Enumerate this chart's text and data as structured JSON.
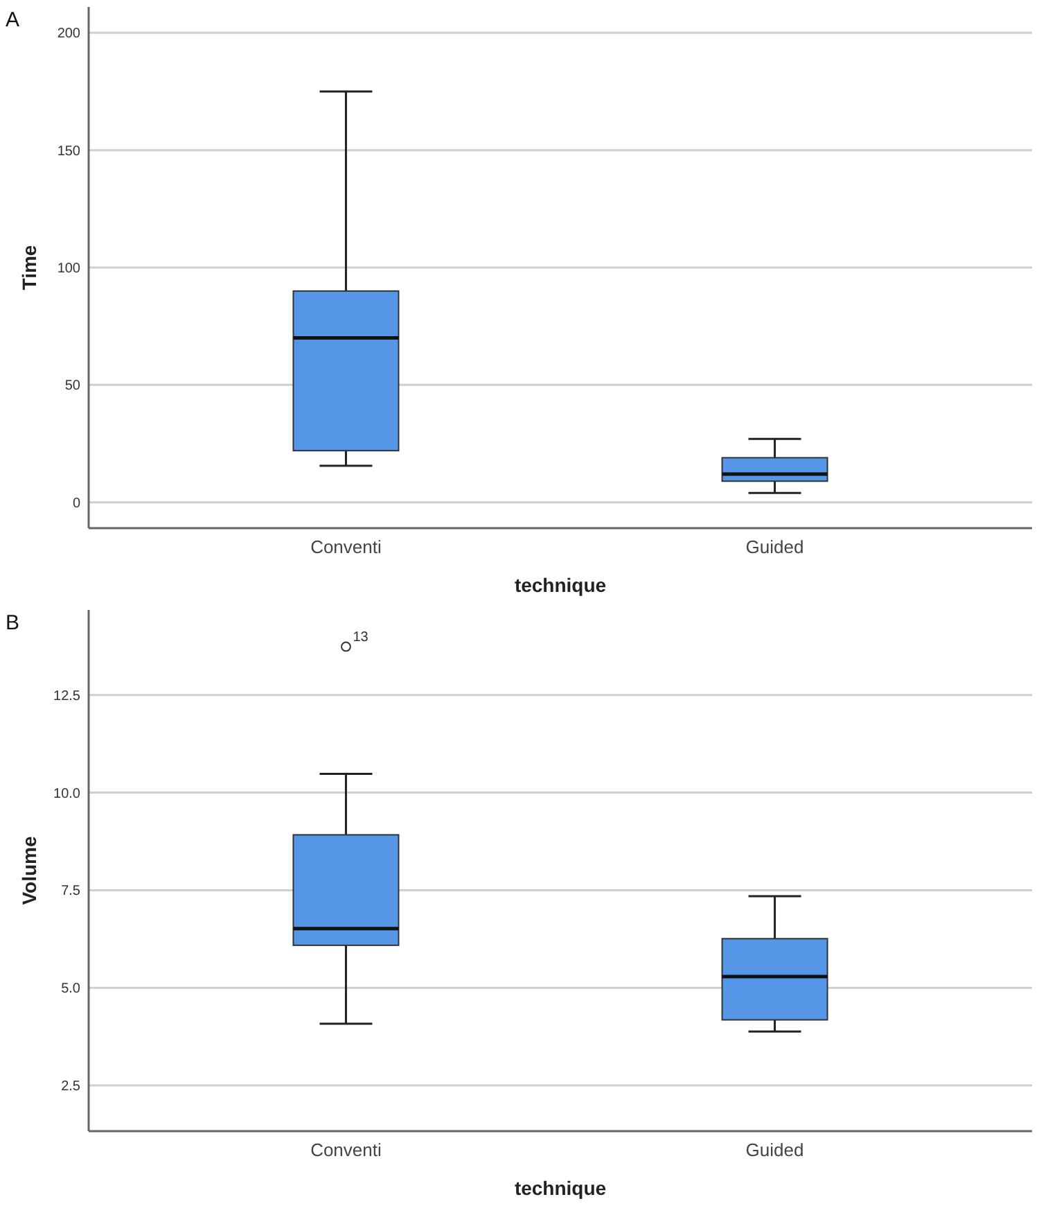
{
  "chart_data": [
    {
      "type": "box",
      "categories": [
        "Conventi",
        "Guided"
      ],
      "xlabel": "technique",
      "ylabel": "Time",
      "color": "#5596e6",
      "boxes": [
        {
          "low": 15.6,
          "q1": 22,
          "median": 70,
          "q3": 90,
          "high": 175
        },
        {
          "low": 4,
          "q1": 9,
          "median": 12,
          "q3": 19,
          "high": 27
        }
      ],
      "ylim": [
        -11,
        211
      ],
      "yticks": [
        0,
        50,
        100,
        150,
        200
      ],
      "grid": "y",
      "annotations": [
        "A"
      ]
    },
    {
      "type": "box",
      "categories": [
        "Conventi",
        "Guided"
      ],
      "xlabel": "technique",
      "ylabel": "Volume",
      "color": "#5596e6",
      "boxes": [
        {
          "low": 4.08,
          "q1": 6.09,
          "median": 6.52,
          "q3": 8.92,
          "high": 10.48,
          "outliers": [
            13.74
          ]
        },
        {
          "low": 3.88,
          "q1": 4.18,
          "median": 5.29,
          "q3": 6.26,
          "high": 7.35
        }
      ],
      "ylim": [
        1.33,
        14.68
      ],
      "yticks": [
        {
          "value": 2.5,
          "label": "2.5"
        },
        {
          "value": 5,
          "label": "5.0"
        },
        {
          "value": 7.5,
          "label": "7.5"
        },
        {
          "value": 10,
          "label": "10.0"
        },
        {
          "value": 12.5,
          "label": "12.5"
        }
      ],
      "grid": "y",
      "annotations": [
        "B",
        "13"
      ]
    }
  ]
}
